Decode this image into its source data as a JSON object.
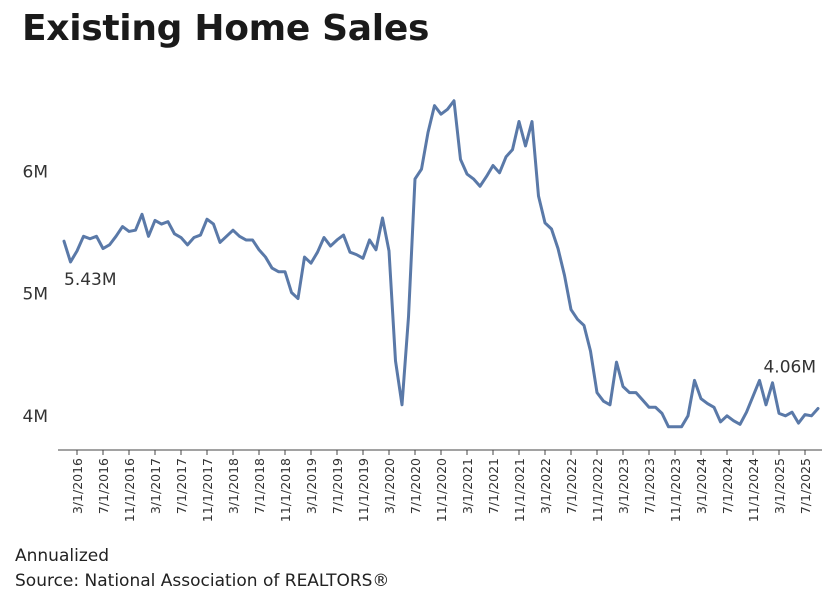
{
  "chart_data": {
    "type": "line",
    "title": "Existing Home Sales",
    "xlabel": "",
    "ylabel": "",
    "y_ticks": [
      {
        "value": 4.0,
        "label": "4M"
      },
      {
        "value": 5.0,
        "label": "5M"
      },
      {
        "value": 6.0,
        "label": "6M"
      }
    ],
    "ylim": [
      3.72,
      6.75
    ],
    "x_tick_labels": [
      "3/1/2016",
      "7/1/2016",
      "11/1/2016",
      "3/1/2017",
      "7/1/2017",
      "11/1/2017",
      "3/1/2018",
      "7/1/2018",
      "11/1/2018",
      "3/1/2019",
      "7/1/2019",
      "11/1/2019",
      "3/1/2020",
      "7/1/2020",
      "11/1/2020",
      "3/1/2021",
      "7/1/2021",
      "11/1/2021",
      "3/1/2022",
      "7/1/2022",
      "11/1/2022",
      "3/1/2023",
      "7/1/2023",
      "11/1/2023",
      "3/1/2024",
      "7/1/2024",
      "11/1/2024",
      "3/1/2025",
      "7/1/2025"
    ],
    "series": [
      {
        "name": "Existing Home Sales",
        "start": "1/1/2016",
        "frequency": "monthly",
        "values": [
          5.43,
          5.26,
          5.35,
          5.47,
          5.45,
          5.47,
          5.37,
          5.4,
          5.47,
          5.55,
          5.51,
          5.52,
          5.65,
          5.47,
          5.6,
          5.57,
          5.59,
          5.49,
          5.46,
          5.4,
          5.46,
          5.48,
          5.61,
          5.57,
          5.42,
          5.47,
          5.52,
          5.47,
          5.44,
          5.44,
          5.36,
          5.3,
          5.21,
          5.18,
          5.18,
          5.01,
          4.96,
          5.3,
          5.25,
          5.34,
          5.46,
          5.39,
          5.44,
          5.48,
          5.34,
          5.32,
          5.29,
          5.44,
          5.36,
          5.62,
          5.35,
          4.45,
          4.09,
          4.81,
          5.94,
          6.02,
          6.32,
          6.54,
          6.47,
          6.51,
          6.58,
          6.1,
          5.98,
          5.94,
          5.88,
          5.96,
          6.05,
          5.99,
          6.12,
          6.18,
          6.41,
          6.21,
          6.41,
          5.8,
          5.58,
          5.53,
          5.37,
          5.15,
          4.87,
          4.79,
          4.74,
          4.53,
          4.19,
          4.12,
          4.09,
          4.44,
          4.24,
          4.19,
          4.19,
          4.13,
          4.07,
          4.07,
          4.02,
          3.91,
          3.91,
          3.91,
          4.0,
          4.29,
          4.14,
          4.1,
          4.07,
          3.95,
          4.0,
          3.96,
          3.93,
          4.03,
          4.16,
          4.29,
          4.09,
          4.27,
          4.02,
          4.0,
          4.03,
          3.94,
          4.01,
          4.0,
          4.06
        ]
      }
    ],
    "annotations": [
      {
        "text": "5.43M",
        "point_index": 0
      },
      {
        "text": "4.06M",
        "point_index": 116
      }
    ]
  },
  "footer": {
    "note": "Annualized",
    "source": "Source: National Association of REALTORS®"
  }
}
